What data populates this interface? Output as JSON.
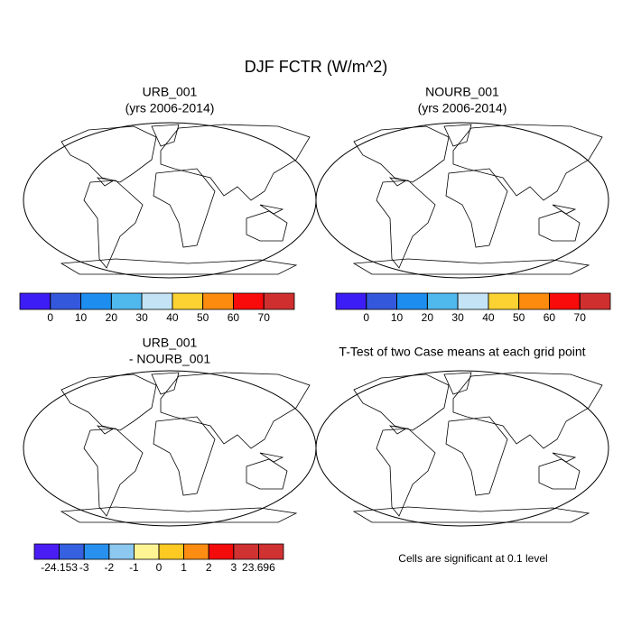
{
  "title": "DJF FCTR (W/m^2)",
  "panels": [
    {
      "title": [
        "URB_001",
        "(yrs 2006-2014)"
      ]
    },
    {
      "title": [
        "NOURB_001",
        "(yrs 2006-2014)"
      ]
    },
    {
      "title": [
        "URB_001",
        "- NOURB_001"
      ]
    },
    {
      "title": [
        "T-Test of two Case means at each grid point"
      ]
    }
  ],
  "colorbars": [
    {
      "labels": [
        0,
        10,
        20,
        30,
        40,
        50,
        60,
        70
      ],
      "colors": [
        "#3d1df5",
        "#3458dc",
        "#1d8ef0",
        "#4fb9ee",
        "#c4e4f5",
        "#fcd232",
        "#fd8c0e",
        "#f90b0b",
        "#cf2f2f"
      ]
    },
    {
      "labels": [
        0,
        10,
        20,
        30,
        40,
        50,
        60,
        70
      ],
      "colors": [
        "#3d1df5",
        "#3458dc",
        "#1d8ef0",
        "#4fb9ee",
        "#c4e4f5",
        "#fcd232",
        "#fd8c0e",
        "#f90b0b",
        "#cf2f2f"
      ]
    },
    {
      "labels": [
        -24.153,
        -3,
        -2,
        -1,
        0,
        1,
        2,
        3,
        23.696
      ],
      "colors": [
        "#4a1df5",
        "#3560e0",
        "#2890ee",
        "#8cc8f0",
        "#fdf594",
        "#fdc923",
        "#fd8d12",
        "#f40c0c",
        "#d03232",
        "#d03232"
      ]
    }
  ],
  "note": "Cells are significant at 0.1 level"
}
